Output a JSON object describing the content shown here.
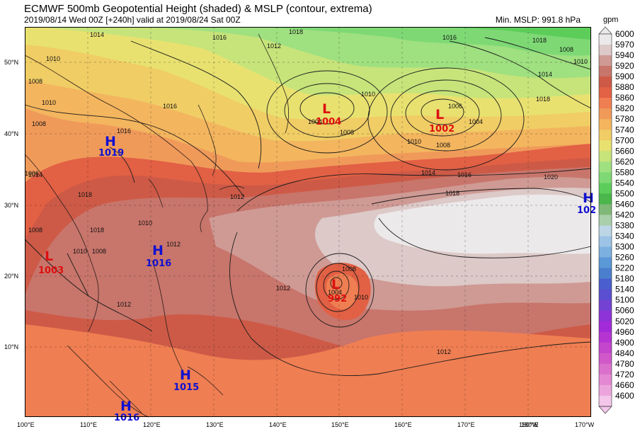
{
  "header": {
    "title": "ECMWF 500mb Geopotential Height (shaded) & MSLP (contour, extrema)",
    "subtitle": "2019/08/14 Wed 00Z [+240h] valid at 2019/08/24 Sat 00Z",
    "min_mslp": "Min. MSLP: 991.8 hPa"
  },
  "colorbar": {
    "unit": "gpm",
    "levels": [
      "6000",
      "5970",
      "5940",
      "5920",
      "5900",
      "5880",
      "5860",
      "5820",
      "5780",
      "5740",
      "5700",
      "5660",
      "5620",
      "5580",
      "5540",
      "5500",
      "5460",
      "5420",
      "5380",
      "5340",
      "5300",
      "5260",
      "5220",
      "5180",
      "5140",
      "5100",
      "5060",
      "5020",
      "4960",
      "4900",
      "4840",
      "4780",
      "4720",
      "4660",
      "4600"
    ],
    "colors": [
      "#ece9ea",
      "#dcc9c8",
      "#cf9a94",
      "#c8756b",
      "#cd5a47",
      "#e26044",
      "#ef7e52",
      "#f09a5a",
      "#f3b55e",
      "#f0cd65",
      "#e8e170",
      "#c6e47a",
      "#9fe080",
      "#7ed975",
      "#5dcd5a",
      "#4ab64b",
      "#80b878",
      "#a9cfaa",
      "#bdd6e6",
      "#9dc4e6",
      "#7cb0e0",
      "#5b98d6",
      "#4a7fcd",
      "#4a5fcd",
      "#5a4fd0",
      "#7442d2",
      "#8e33d6",
      "#a22ad8",
      "#b535d3",
      "#c346cc",
      "#d058c9",
      "#db70cc",
      "#e488d3",
      "#eca5dc",
      "#f3c6ea"
    ]
  },
  "map": {
    "lat_labels": [
      "50°N",
      "40°N",
      "30°N",
      "20°N",
      "10°N"
    ],
    "lon_labels": [
      "100°E",
      "110°E",
      "120°E",
      "130°E",
      "140°E",
      "150°E",
      "160°E",
      "170°E",
      "180°W",
      "170°W"
    ],
    "lon_overprint": "180°E",
    "pressure_centers": [
      {
        "type": "H",
        "value": "1019",
        "color": "#1010d0"
      },
      {
        "type": "L",
        "value": "1004",
        "color": "#dd1010"
      },
      {
        "type": "L",
        "value": "1002",
        "color": "#dd1010"
      },
      {
        "type": "H",
        "value": "102",
        "color": "#1010d0"
      },
      {
        "type": "H",
        "value": "1016",
        "color": "#1010d0"
      },
      {
        "type": "L",
        "value": "1003",
        "color": "#dd1010"
      },
      {
        "type": "L",
        "value": "992",
        "color": "#dd1010"
      },
      {
        "type": "H",
        "value": "1015",
        "color": "#1010d0"
      },
      {
        "type": "H",
        "value": "1016",
        "color": "#1010d0"
      }
    ],
    "contour_labels": [
      "1014",
      "1016",
      "1018",
      "1016",
      "1018",
      "1008",
      "1010",
      "1014",
      "1018",
      "1008",
      "1016",
      "1010",
      "1012",
      "1016",
      "1008",
      "1004",
      "1010",
      "1006",
      "1004",
      "1008",
      "1010",
      "1014",
      "1016",
      "1018",
      "1020",
      "1010",
      "1008",
      "1006",
      "1014",
      "1018",
      "1008",
      "1008",
      "1010",
      "1012",
      "1012",
      "1010",
      "1012",
      "1018",
      "1008",
      "1004",
      "1010",
      "1012",
      "1012"
    ]
  }
}
